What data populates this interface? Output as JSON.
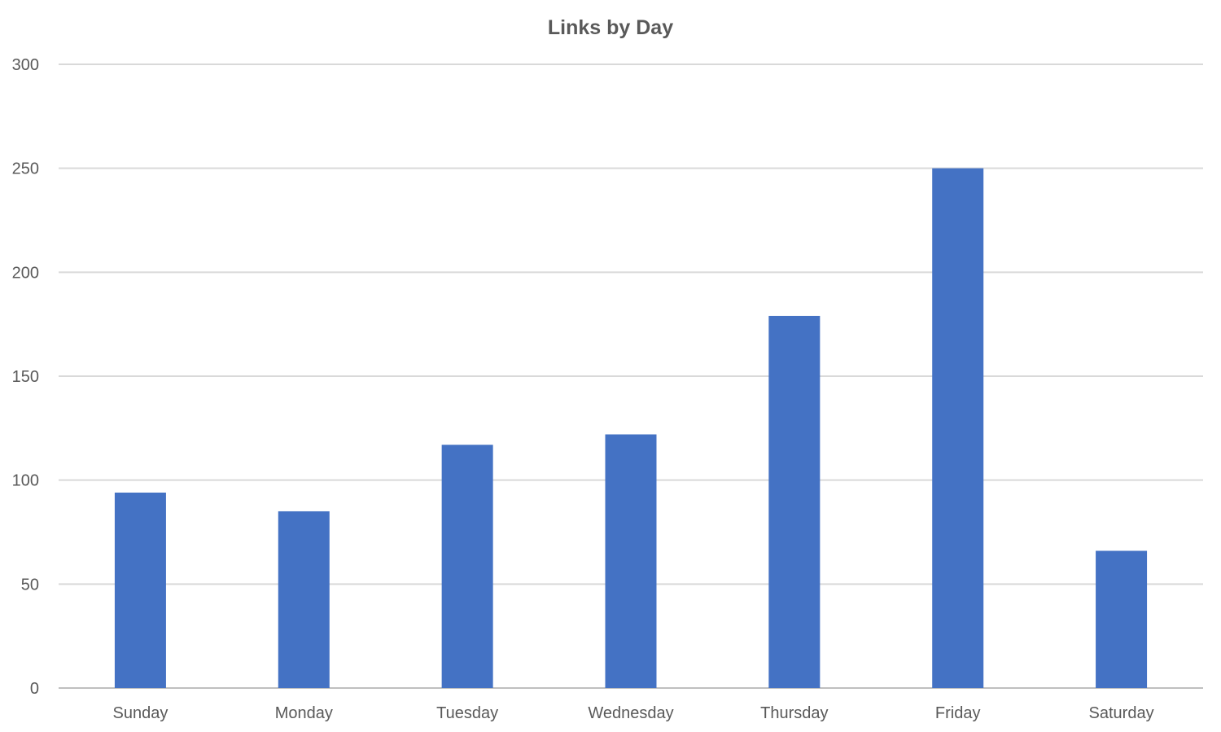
{
  "chart_data": {
    "type": "bar",
    "title": "Links by Day",
    "xlabel": "",
    "ylabel": "",
    "categories": [
      "Sunday",
      "Monday",
      "Tuesday",
      "Wednesday",
      "Thursday",
      "Friday",
      "Saturday"
    ],
    "values": [
      94,
      85,
      117,
      122,
      179,
      250,
      66
    ],
    "ylim": [
      0,
      300
    ],
    "yticks": [
      0,
      50,
      100,
      150,
      200,
      250,
      300
    ],
    "grid": true,
    "legend": "none",
    "colors": {
      "bar": "#4472C4",
      "grid": "#D9D9D9",
      "axis": "#BFBFBF",
      "text": "#595959"
    }
  }
}
